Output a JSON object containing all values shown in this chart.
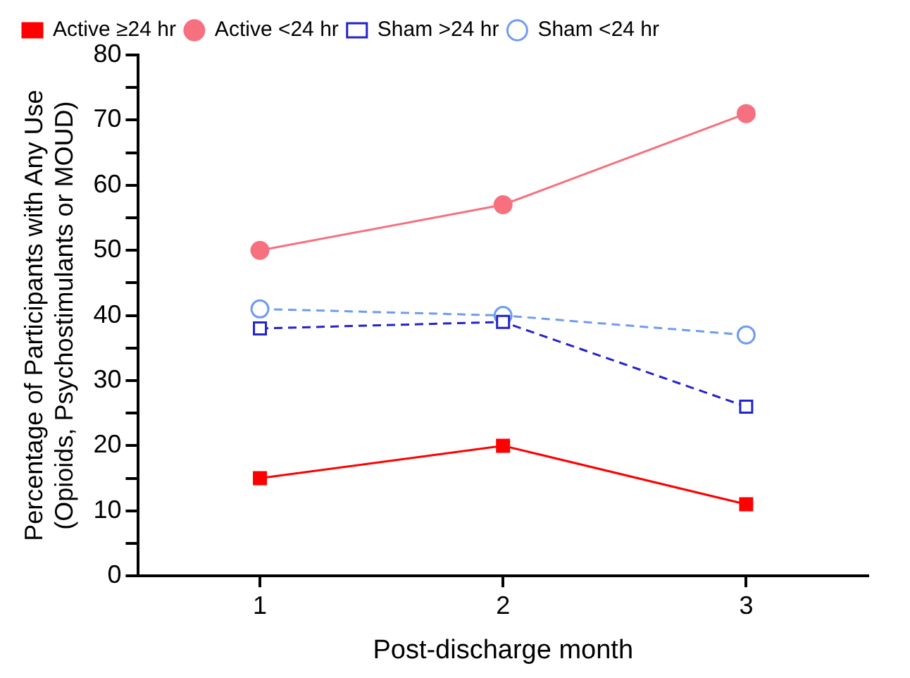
{
  "chart_data": {
    "type": "line",
    "xlabel": "Post-discharge month",
    "ylabel": "Percentage of Participants with Any Use\n(Opioids, Psychostimulants or MOUD)",
    "x": [
      1,
      2,
      3
    ],
    "series": [
      {
        "name": "Active ≥24 hr",
        "color": "#ff0000",
        "values": [
          15,
          20,
          11
        ],
        "marker": "square",
        "line_style": "solid"
      },
      {
        "name": "Active <24 hr",
        "color": "#f7707f",
        "values": [
          50,
          57,
          71
        ],
        "marker": "circle",
        "line_style": "solid"
      },
      {
        "name": "Sham >24 hr",
        "color": "#2323cc",
        "values": [
          38,
          39,
          26
        ],
        "marker": "square",
        "line_style": "dashed"
      },
      {
        "name": "Sham <24 hr",
        "color": "#6f9cf0",
        "values": [
          41,
          40,
          37
        ],
        "marker": "circle",
        "line_style": "dashed"
      }
    ],
    "xlim": [
      0.5,
      3.5
    ],
    "xticks": [
      1,
      2,
      3
    ],
    "ylim": [
      0,
      80
    ],
    "yticks": [
      0,
      {
        "value": 5,
        "label": null
      },
      10,
      {
        "value": 15,
        "label": null
      },
      20,
      {
        "value": 25,
        "label": null
      },
      30,
      {
        "value": 35,
        "label": null
      },
      40,
      {
        "value": 45,
        "label": null
      },
      50,
      {
        "value": 55,
        "label": null
      },
      60,
      {
        "value": 65,
        "label": null
      },
      70,
      {
        "value": 75,
        "label": null
      },
      80
    ],
    "grid": false,
    "legend": "top left"
  }
}
